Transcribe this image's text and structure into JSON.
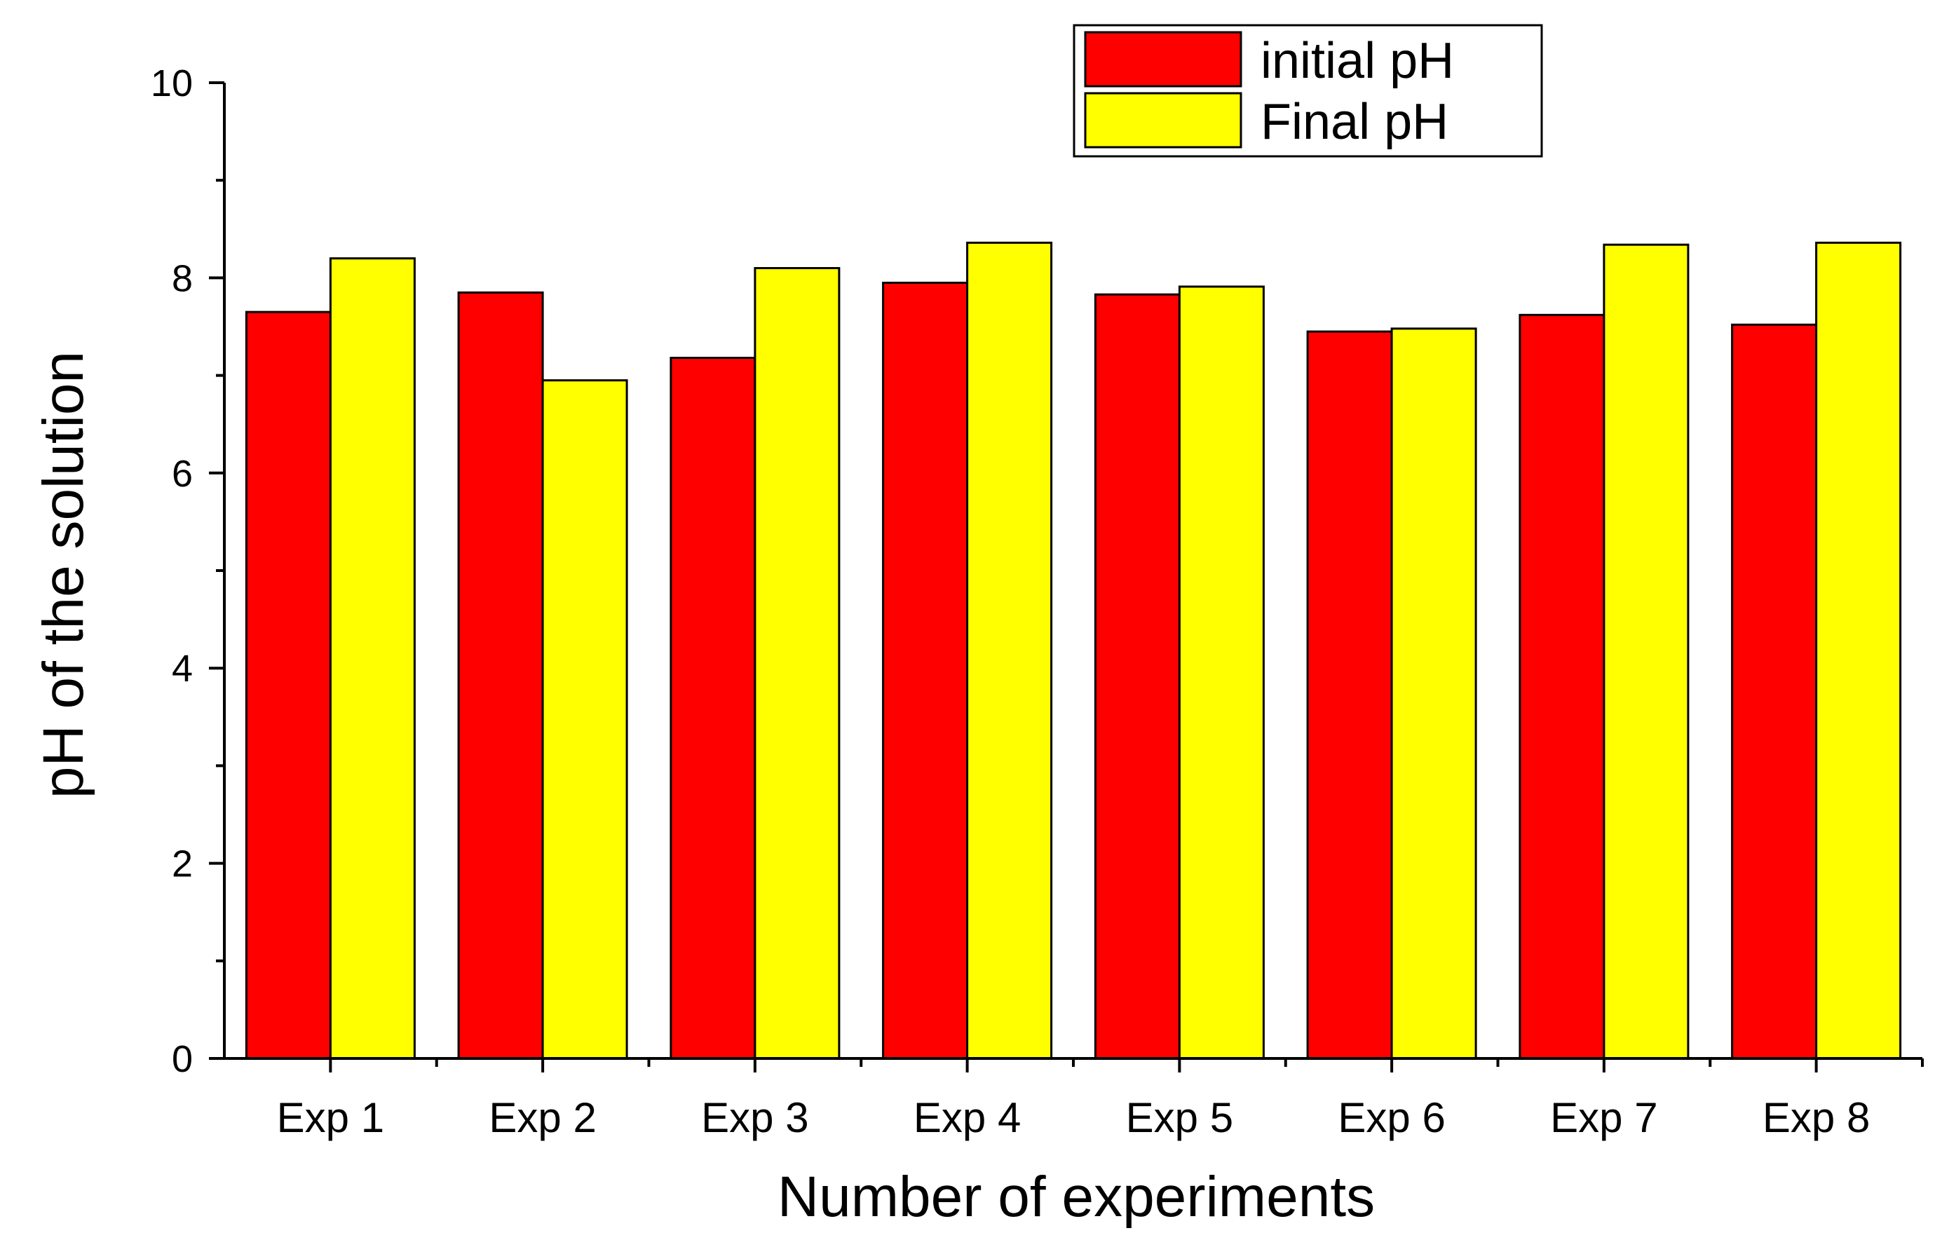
{
  "chart_data": {
    "type": "bar",
    "title": "",
    "xlabel": "Number of experiments",
    "ylabel": "pH of  the solution",
    "ylim": [
      0,
      10
    ],
    "yticks": [
      "0",
      "2",
      "4",
      "6",
      "8",
      "10"
    ],
    "categories": [
      "Exp 1",
      "Exp 2",
      "Exp 3",
      "Exp 4",
      "Exp 5",
      "Exp 6",
      "Exp 7",
      "Exp 8"
    ],
    "series": [
      {
        "name": "initial pH",
        "color": "#ff0000",
        "values": [
          7.65,
          7.85,
          7.18,
          7.95,
          7.83,
          7.45,
          7.62,
          7.52
        ]
      },
      {
        "name": "Final pH",
        "color": "#ffff00",
        "values": [
          8.2,
          6.95,
          8.1,
          8.36,
          7.91,
          7.48,
          8.34,
          8.36
        ]
      }
    ],
    "legend_position": "top-right",
    "grid": false
  }
}
